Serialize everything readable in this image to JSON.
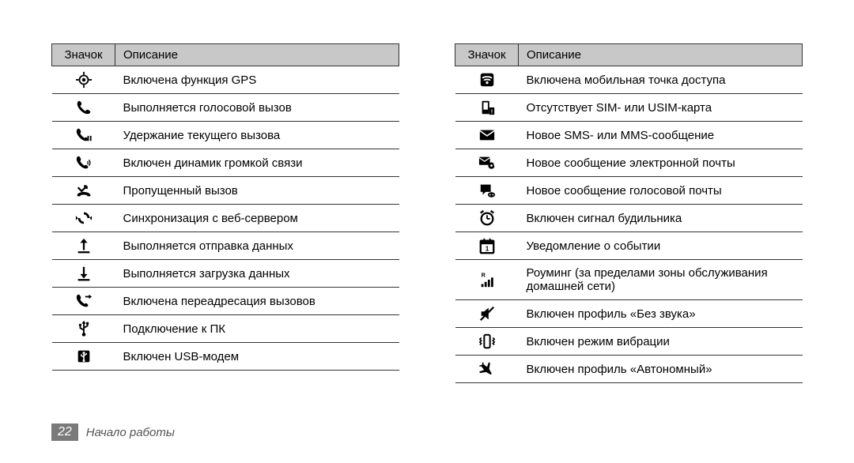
{
  "header": {
    "iconCol": "Значок",
    "descCol": "Описание"
  },
  "left": {
    "rows": [
      {
        "icon": "gps",
        "desc": "Включена функция GPS"
      },
      {
        "icon": "phone",
        "desc": "Выполняется голосовой вызов"
      },
      {
        "icon": "phone-hold",
        "desc": "Удержание текущего вызова"
      },
      {
        "icon": "phone-speaker",
        "desc": "Включен динамик громкой связи"
      },
      {
        "icon": "missed-call",
        "desc": "Пропущенный вызов"
      },
      {
        "icon": "sync",
        "desc": "Синхронизация с веб-сервером"
      },
      {
        "icon": "upload",
        "desc": "Выполняется отправка данных"
      },
      {
        "icon": "download",
        "desc": "Выполняется загрузка данных"
      },
      {
        "icon": "call-forward",
        "desc": "Включена переадресация вызовов"
      },
      {
        "icon": "usb",
        "desc": "Подключение к ПК"
      },
      {
        "icon": "usb-modem",
        "desc": "Включен USB-модем"
      }
    ]
  },
  "right": {
    "rows": [
      {
        "icon": "hotspot",
        "desc": "Включена мобильная точка доступа"
      },
      {
        "icon": "no-sim",
        "desc": "Отсутствует SIM- или USIM-карта"
      },
      {
        "icon": "sms",
        "desc": "Новое SMS- или MMS-сообщение"
      },
      {
        "icon": "email",
        "desc": "Новое сообщение электронной почты"
      },
      {
        "icon": "voicemail",
        "desc": "Новое сообщение голосовой почты"
      },
      {
        "icon": "alarm",
        "desc": "Включен сигнал будильника"
      },
      {
        "icon": "event",
        "desc": "Уведомление о событии"
      },
      {
        "icon": "roaming",
        "desc": "Роуминг (за пределами зоны обслуживания домашней сети)"
      },
      {
        "icon": "mute",
        "desc": "Включен профиль «Без звука»"
      },
      {
        "icon": "vibrate",
        "desc": "Включен режим вибрации"
      },
      {
        "icon": "airplane",
        "desc": "Включен профиль «Автономный»"
      }
    ]
  },
  "footer": {
    "page": "22",
    "section": "Начало работы"
  },
  "style": {
    "header_bg": "#c8c8c8",
    "border_color": "#333333",
    "text_color": "#000000",
    "footer_page_bg": "#7a7a7a",
    "footer_text_color": "#555555",
    "font_size_body": 15,
    "font_size_footer": 15,
    "icon_col_width": 80
  }
}
